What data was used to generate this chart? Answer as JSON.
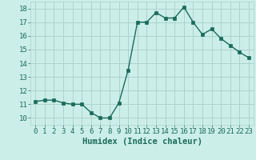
{
  "x": [
    0,
    1,
    2,
    3,
    4,
    5,
    6,
    7,
    8,
    9,
    10,
    11,
    12,
    13,
    14,
    15,
    16,
    17,
    18,
    19,
    20,
    21,
    22,
    23
  ],
  "y": [
    11.2,
    11.3,
    11.3,
    11.1,
    11.0,
    11.0,
    10.4,
    10.0,
    10.0,
    11.1,
    13.5,
    17.0,
    17.0,
    17.7,
    17.3,
    17.3,
    18.1,
    17.0,
    16.1,
    16.5,
    15.8,
    15.3,
    14.8,
    14.4
  ],
  "line_color": "#1a6b5a",
  "marker": "s",
  "marker_size": 2.5,
  "bg_color": "#cceee8",
  "grid_color": "#aad4cc",
  "xlabel": "Humidex (Indice chaleur)",
  "xlim": [
    -0.5,
    23.5
  ],
  "ylim": [
    9.5,
    18.5
  ],
  "yticks": [
    10,
    11,
    12,
    13,
    14,
    15,
    16,
    17,
    18
  ],
  "tick_fontsize": 6.5,
  "label_fontsize": 7.5,
  "linewidth": 1.0
}
